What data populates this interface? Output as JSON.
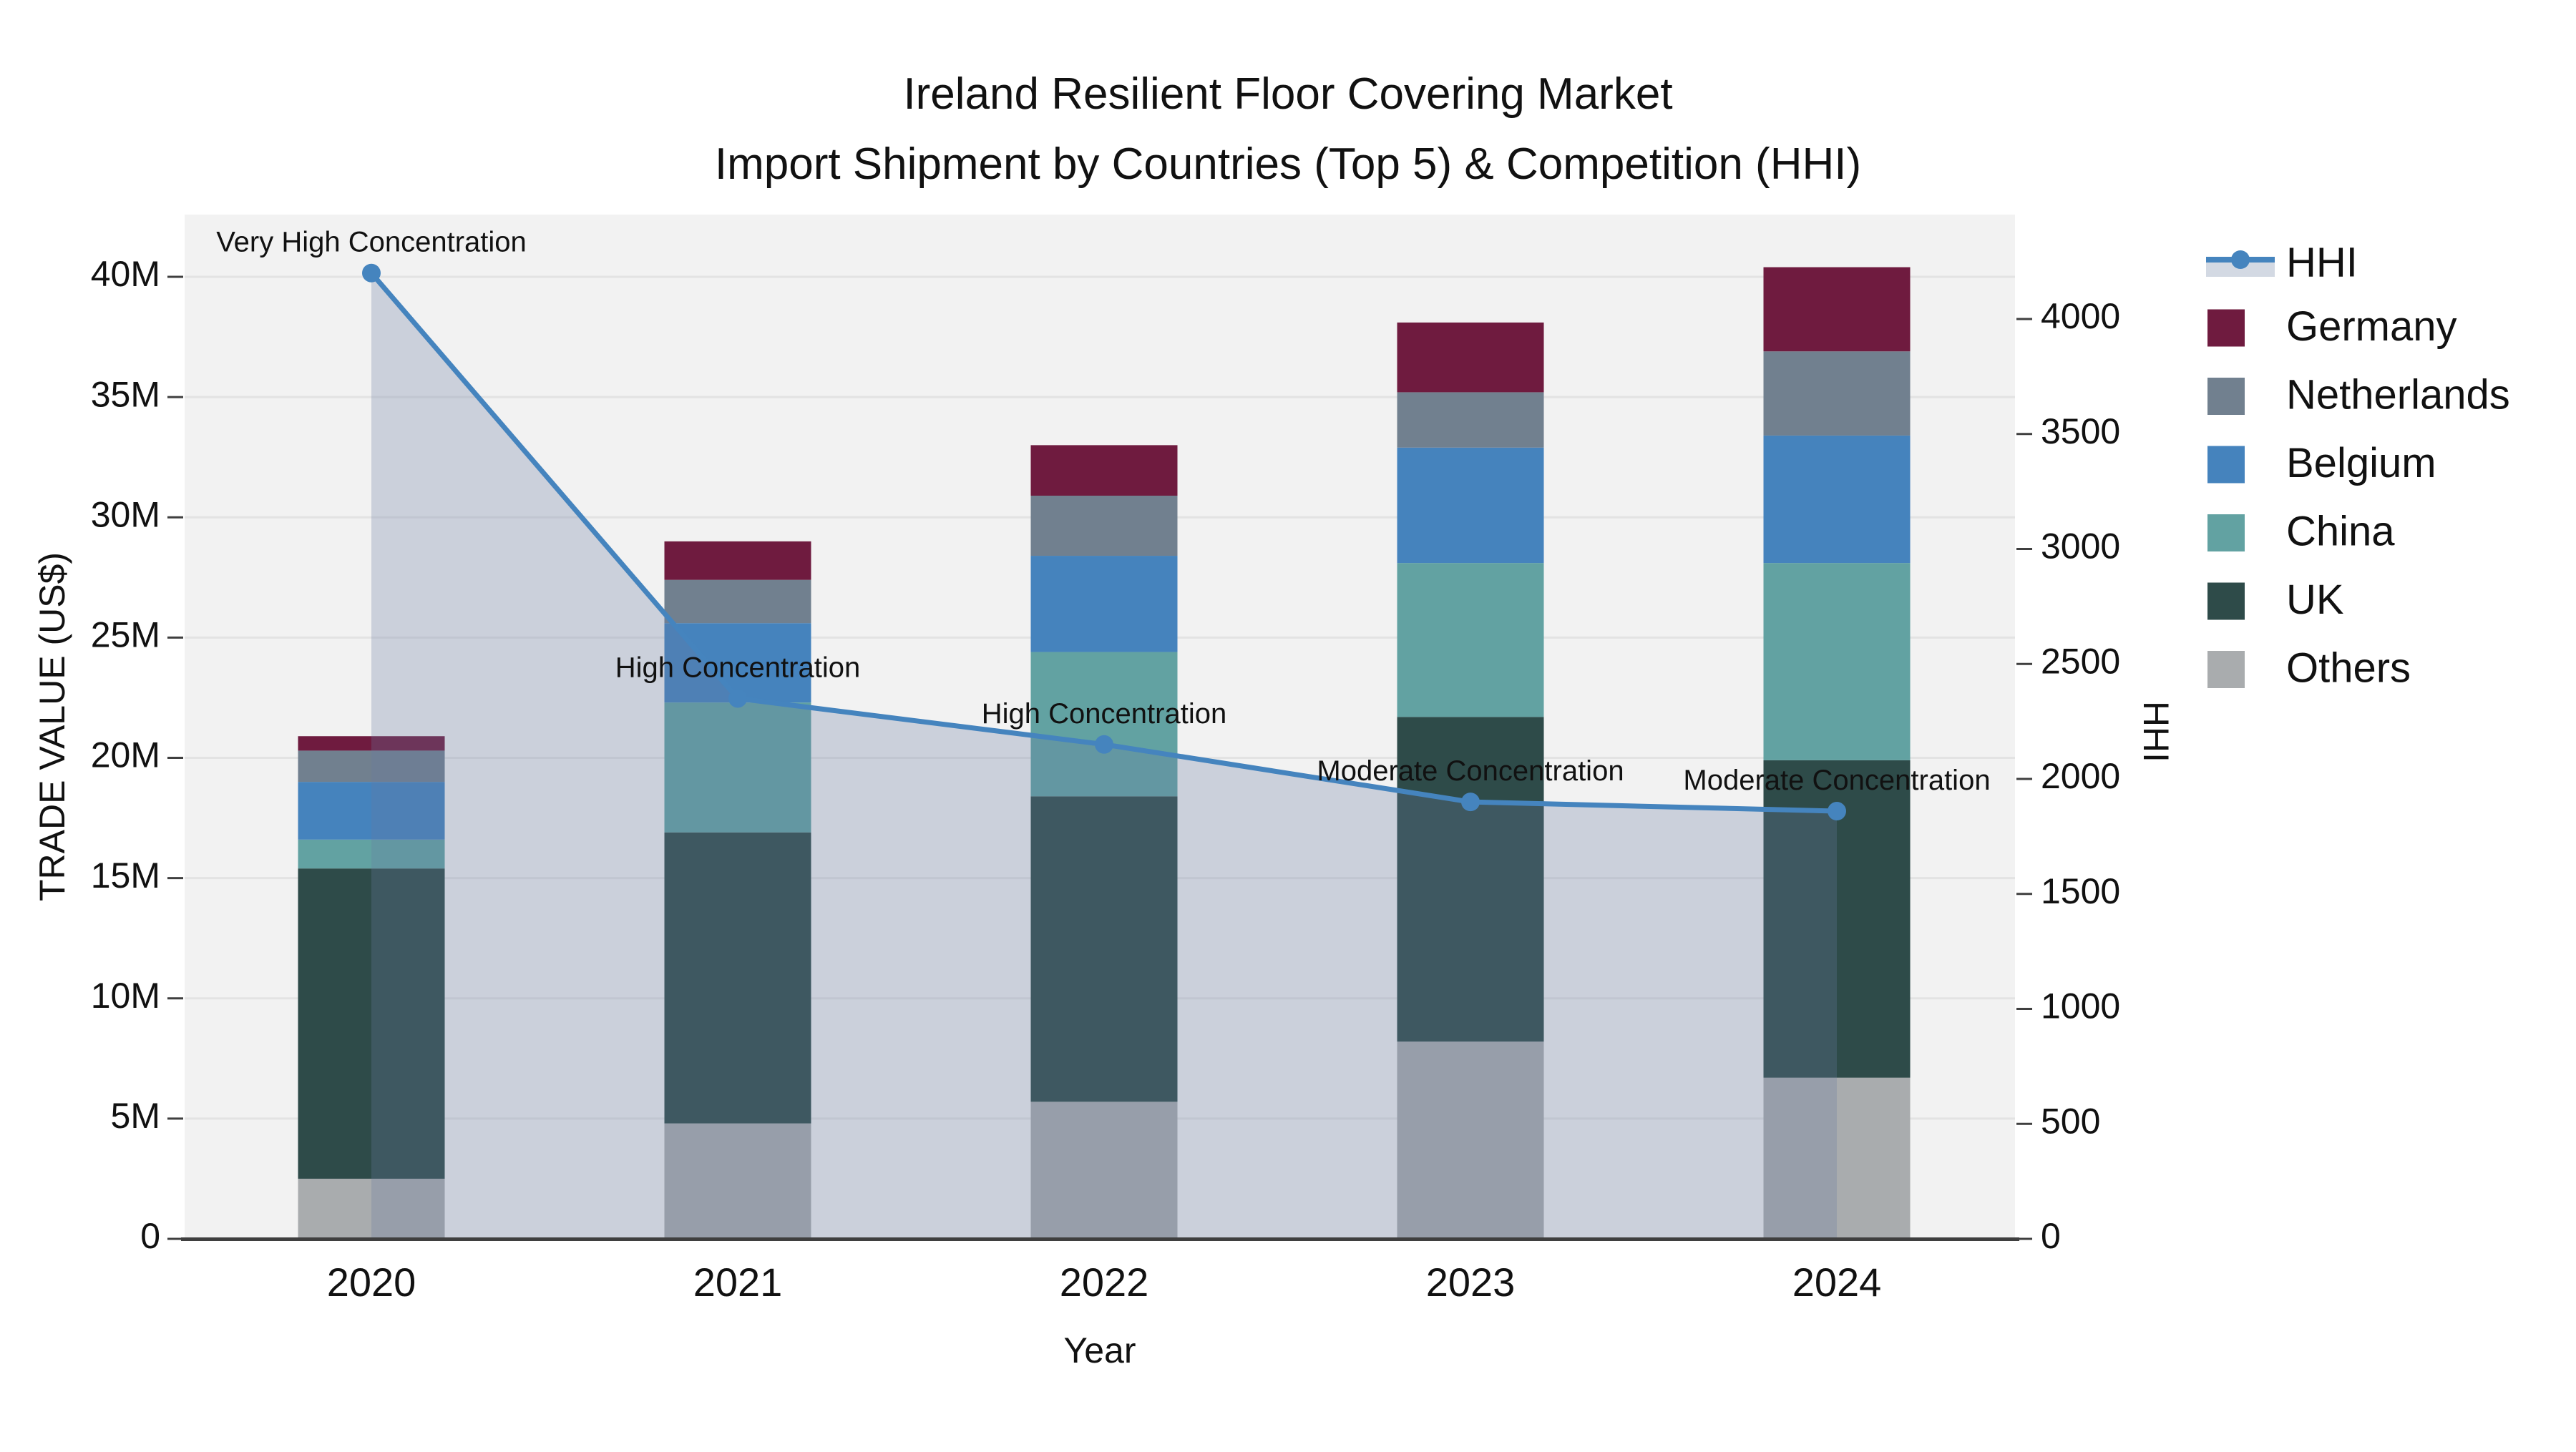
{
  "title": {
    "line1": "Ireland Resilient Floor Covering Market",
    "line2": "Import Shipment by Countries (Top 5) & Competition (HHI)"
  },
  "chart_data": {
    "type": [
      "bar-stacked",
      "line-area"
    ],
    "categories": [
      "2020",
      "2021",
      "2022",
      "2023",
      "2024"
    ],
    "x_label": "Year",
    "y_left": {
      "label": "TRADE VALUE (US$)",
      "tick_values": [
        0,
        5,
        10,
        15,
        20,
        25,
        30,
        35,
        40
      ],
      "tick_labels": [
        "0",
        "5M",
        "10M",
        "15M",
        "20M",
        "25M",
        "30M",
        "35M",
        "40M"
      ],
      "unit": "millions USD",
      "max": 40
    },
    "y_right": {
      "label": "HHI",
      "tick_values": [
        0,
        500,
        1000,
        1500,
        2000,
        2500,
        3000,
        3500,
        4000
      ],
      "tick_labels": [
        "0",
        "500",
        "1000",
        "1500",
        "2000",
        "2500",
        "3000",
        "3500",
        "4000"
      ],
      "max": 4000
    },
    "bar_series_bottom_to_top": [
      {
        "name": "Others",
        "color": "#A9ACAE",
        "values_millions": [
          2.5,
          4.8,
          5.7,
          8.2,
          6.7
        ]
      },
      {
        "name": "UK",
        "color": "#2E4B49",
        "values_millions": [
          12.9,
          12.1,
          12.7,
          13.5,
          13.2
        ]
      },
      {
        "name": "China",
        "color": "#62A2A2",
        "values_millions": [
          1.2,
          5.4,
          6.0,
          6.4,
          8.2
        ]
      },
      {
        "name": "Belgium",
        "color": "#4583BD",
        "values_millions": [
          2.4,
          3.3,
          4.0,
          4.8,
          5.3
        ]
      },
      {
        "name": "Netherlands",
        "color": "#71808F",
        "values_millions": [
          1.3,
          1.8,
          2.5,
          2.3,
          3.5
        ]
      },
      {
        "name": "Germany",
        "color": "#6F1B3F",
        "values_millions": [
          0.6,
          1.6,
          2.1,
          2.9,
          3.5
        ]
      }
    ],
    "line_series": {
      "name": "HHI",
      "color": "#4584BE",
      "area_fill": "rgba(103,121,160,0.28)",
      "values": [
        4200,
        2350,
        2150,
        1900,
        1860
      ]
    },
    "annotations": [
      "Very High Concentration",
      "High Concentration",
      "High Concentration",
      "Moderate Concentration",
      "Moderate Concentration"
    ],
    "legend_order": [
      "HHI",
      "Germany",
      "Netherlands",
      "Belgium",
      "China",
      "UK",
      "Others"
    ],
    "legend_area_patch_color": "#D3D9E3",
    "plot_bg": "#F2F2F2",
    "grid_color": "#E3E3E3",
    "axis_line_color": "#3F3F3F"
  }
}
